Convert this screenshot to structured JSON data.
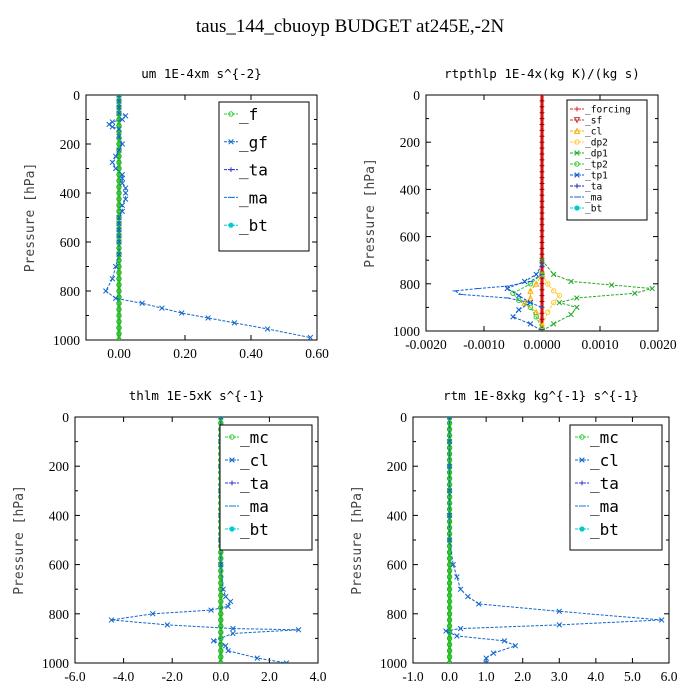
{
  "title": "taus_144_cbuoyp  BUDGET at245E,-2N",
  "chart_data": [
    {
      "type": "line",
      "title": "um  1E-4xm s^{-2}",
      "ylabel": "Pressure [hPa]",
      "xlim": [
        -0.1,
        0.6
      ],
      "ylim": [
        1000,
        0
      ],
      "xticks": [
        "0.00",
        "0.20",
        "0.40",
        "0.60"
      ],
      "xtick_values": [
        0,
        0.2,
        0.4,
        0.6
      ],
      "yticks": [
        0,
        200,
        400,
        600,
        800,
        1000
      ],
      "legend_placement": "top-right",
      "series": [
        {
          "name": "_f",
          "color": "#33cc33",
          "marker": "o",
          "x": [
            0,
            0,
            0,
            0,
            0,
            0,
            0,
            0,
            0,
            0,
            0,
            0,
            0,
            0,
            0,
            0,
            0,
            0,
            0,
            0,
            0,
            0,
            0,
            0,
            0,
            0,
            0,
            0,
            0,
            0,
            0,
            0,
            0,
            0,
            0,
            0,
            0,
            0,
            0,
            0,
            0
          ],
          "y": [
            0,
            25,
            50,
            75,
            100,
            125,
            150,
            175,
            200,
            225,
            250,
            275,
            300,
            325,
            350,
            375,
            400,
            425,
            450,
            475,
            500,
            525,
            550,
            575,
            600,
            625,
            650,
            675,
            700,
            725,
            750,
            775,
            800,
            825,
            850,
            875,
            900,
            925,
            950,
            975,
            1000
          ]
        },
        {
          "name": "_gf",
          "color": "#1166cc",
          "marker": "x",
          "x": [
            0,
            0,
            0,
            0,
            0.02,
            0.01,
            -0.02,
            -0.03,
            -0.02,
            0,
            0,
            0.01,
            0,
            -0.01,
            -0.02,
            -0.01,
            0.01,
            0.01,
            0.01,
            0.02,
            0.02,
            0.02,
            0.01,
            0.01,
            0,
            0,
            0,
            0,
            0,
            0,
            -0.01,
            -0.02,
            -0.04,
            -0.01,
            0.07,
            0.13,
            0.19,
            0.27,
            0.35,
            0.45,
            0.58
          ],
          "y": [
            0,
            25,
            50,
            75,
            85,
            100,
            110,
            120,
            130,
            140,
            170,
            200,
            225,
            250,
            275,
            300,
            325,
            340,
            360,
            380,
            400,
            425,
            450,
            475,
            500,
            525,
            550,
            575,
            600,
            650,
            700,
            750,
            800,
            830,
            850,
            870,
            890,
            910,
            930,
            955,
            990
          ]
        },
        {
          "name": "_ta",
          "color": "#3333cc",
          "marker": "+",
          "x": [],
          "y": []
        },
        {
          "name": "_ma",
          "color": "#1177dd",
          "marker": "-",
          "x": [],
          "y": []
        },
        {
          "name": "_bt",
          "color": "#00cccc",
          "marker": "*",
          "x": [],
          "y": []
        }
      ]
    },
    {
      "type": "line",
      "title": "rtpthlp  1E-4x(kg K)/(kg s)",
      "ylabel": "Pressure [hPa]",
      "xlim": [
        -0.002,
        0.002
      ],
      "ylim": [
        1000,
        0
      ],
      "xticks": [
        "-0.0020",
        "-0.0010",
        "0.0000",
        "0.0010",
        "0.0020"
      ],
      "xtick_values": [
        -0.002,
        -0.001,
        0,
        0.001,
        0.002
      ],
      "yticks": [
        0,
        200,
        400,
        600,
        800,
        1000
      ],
      "legend_placement": "top-right",
      "series": [
        {
          "name": "_forcing",
          "color": "#dd2222",
          "marker": "+",
          "x": [
            0,
            0,
            0,
            0,
            0,
            0,
            0,
            0,
            0,
            0,
            0,
            0,
            0,
            0,
            0,
            0,
            0,
            0,
            0,
            0,
            0,
            0,
            0,
            0,
            0,
            0,
            0,
            0,
            0,
            0,
            0,
            0,
            0,
            0,
            0,
            0,
            0,
            0,
            0,
            0,
            0
          ],
          "y": [
            0,
            25,
            50,
            75,
            100,
            125,
            150,
            175,
            200,
            225,
            250,
            275,
            300,
            325,
            350,
            375,
            400,
            425,
            450,
            475,
            500,
            525,
            550,
            575,
            600,
            625,
            650,
            675,
            700,
            725,
            750,
            775,
            800,
            825,
            850,
            875,
            900,
            925,
            950,
            975,
            1000
          ]
        },
        {
          "name": "_sf",
          "color": "#cc3333",
          "marker": "v",
          "x": [],
          "y": []
        },
        {
          "name": "_cl",
          "color": "#ffaa00",
          "marker": "^",
          "x": [
            0,
            -0.0001,
            -0.0002,
            -0.0002,
            -0.0003,
            -0.0001,
            0
          ],
          "y": [
            760,
            800,
            830,
            860,
            880,
            920,
            980
          ]
        },
        {
          "name": "_dp2",
          "color": "#ffcc33",
          "marker": "o",
          "x": [
            0,
            0.0001,
            0.0002,
            0.0003,
            0.0002,
            0.0001,
            0
          ],
          "y": [
            760,
            800,
            830,
            850,
            880,
            920,
            980
          ]
        },
        {
          "name": "_dp1",
          "color": "#22aa22",
          "marker": "x",
          "x": [
            0,
            0.0002,
            0.0005,
            0.0012,
            0.0019,
            0.0016,
            0.0006,
            0.0003,
            0.0006,
            0.0005,
            0.0002,
            0
          ],
          "y": [
            700,
            760,
            790,
            805,
            820,
            840,
            860,
            880,
            900,
            930,
            970,
            1000
          ]
        },
        {
          "name": "_tp2",
          "color": "#33cc33",
          "marker": "o",
          "x": [
            0,
            -0.0002,
            -0.0005,
            -0.0004,
            -0.0002,
            -0.0001,
            0
          ],
          "y": [
            760,
            800,
            840,
            870,
            900,
            940,
            990
          ]
        },
        {
          "name": "_tp1",
          "color": "#1155cc",
          "marker": "x",
          "x": [
            0,
            -0.0001,
            -0.0003,
            -0.0006,
            -0.0004,
            -0.0002,
            -0.0004,
            -0.0005,
            -0.0002,
            0
          ],
          "y": [
            720,
            760,
            790,
            820,
            850,
            880,
            910,
            940,
            970,
            1000
          ]
        },
        {
          "name": "_ta",
          "color": "#2222aa",
          "marker": "+",
          "x": [],
          "y": []
        },
        {
          "name": "_ma",
          "color": "#1166dd",
          "marker": "-",
          "x": [
            0,
            -0.0002,
            -0.0006,
            -0.0011,
            -0.0015,
            -0.0014,
            -0.0006,
            -0.0002,
            0
          ],
          "y": [
            760,
            790,
            810,
            820,
            830,
            845,
            860,
            880,
            900
          ]
        },
        {
          "name": "_bt",
          "color": "#00cccc",
          "marker": "*",
          "x": [],
          "y": []
        }
      ]
    },
    {
      "type": "line",
      "title": "thlm  1E-5xK s^{-1}",
      "ylabel": "Pressure [hPa]",
      "xlim": [
        -6.0,
        4.0
      ],
      "ylim": [
        1000,
        0
      ],
      "xticks": [
        "-6.0",
        "-4.0",
        "-2.0",
        "0.0",
        "2.0",
        "4.0"
      ],
      "xtick_values": [
        -6,
        -4,
        -2,
        0,
        2,
        4
      ],
      "yticks": [
        0,
        200,
        400,
        600,
        800,
        1000
      ],
      "legend_placement": "top-right",
      "series": [
        {
          "name": "_mc",
          "color": "#33cc33",
          "marker": "o",
          "x": [
            0,
            0,
            0,
            0,
            0,
            0,
            0,
            0,
            0,
            0,
            0,
            0,
            0,
            0,
            0,
            0,
            0,
            0,
            0,
            0,
            0,
            0,
            0,
            0,
            0,
            0,
            0,
            0,
            0,
            0,
            0,
            0,
            0,
            0,
            0,
            0,
            0,
            0,
            0,
            0,
            0
          ],
          "y": [
            0,
            25,
            50,
            75,
            100,
            125,
            150,
            175,
            200,
            225,
            250,
            275,
            300,
            325,
            350,
            375,
            400,
            425,
            450,
            475,
            500,
            525,
            550,
            575,
            600,
            625,
            650,
            675,
            700,
            725,
            750,
            775,
            800,
            825,
            850,
            875,
            900,
            925,
            950,
            975,
            1000
          ]
        },
        {
          "name": "_cl",
          "color": "#1166cc",
          "marker": "x",
          "x": [
            0,
            0,
            0,
            0,
            0,
            0,
            0,
            0.1,
            0.2,
            0.4,
            0.3,
            -0.4,
            -2.8,
            -4.5,
            -2.2,
            0.5,
            3.2,
            0.5,
            -0.3,
            0.2,
            0.3,
            1.5,
            2.7
          ],
          "y": [
            0,
            100,
            200,
            300,
            400,
            500,
            600,
            700,
            730,
            750,
            770,
            785,
            800,
            825,
            845,
            860,
            865,
            880,
            910,
            930,
            950,
            980,
            1000
          ]
        },
        {
          "name": "_ta",
          "color": "#3333cc",
          "marker": "+",
          "x": [],
          "y": []
        },
        {
          "name": "_ma",
          "color": "#1177dd",
          "marker": "-",
          "x": [],
          "y": []
        },
        {
          "name": "_bt",
          "color": "#00cccc",
          "marker": "*",
          "x": [],
          "y": []
        }
      ]
    },
    {
      "type": "line",
      "title": "rtm  1E-8xkg kg^{-1} s^{-1}",
      "ylabel": "Pressure [hPa]",
      "xlim": [
        -1.0,
        6.0
      ],
      "ylim": [
        1000,
        0
      ],
      "xticks": [
        "-1.0",
        "0.0",
        "1.0",
        "2.0",
        "3.0",
        "4.0",
        "5.0",
        "6.0"
      ],
      "xtick_values": [
        -1,
        0,
        1,
        2,
        3,
        4,
        5,
        6
      ],
      "yticks": [
        0,
        200,
        400,
        600,
        800,
        1000
      ],
      "legend_placement": "top-right",
      "series": [
        {
          "name": "_mc",
          "color": "#33cc33",
          "marker": "o",
          "x": [
            0,
            0,
            0,
            0,
            0,
            0,
            0,
            0,
            0,
            0,
            0,
            0,
            0,
            0,
            0,
            0,
            0,
            0,
            0,
            0,
            0,
            0,
            0,
            0,
            0,
            0,
            0,
            0,
            0,
            0,
            0,
            0,
            0,
            0,
            0,
            0,
            0,
            0,
            0,
            0,
            0
          ],
          "y": [
            0,
            25,
            50,
            75,
            100,
            125,
            150,
            175,
            200,
            225,
            250,
            275,
            300,
            325,
            350,
            375,
            400,
            425,
            450,
            475,
            500,
            525,
            550,
            575,
            600,
            625,
            650,
            675,
            700,
            725,
            750,
            775,
            800,
            825,
            850,
            875,
            900,
            925,
            950,
            975,
            1000
          ]
        },
        {
          "name": "_cl",
          "color": "#1166cc",
          "marker": "x",
          "x": [
            0,
            0,
            0,
            0,
            0,
            0,
            0.1,
            0.2,
            0.3,
            0.5,
            0.8,
            3.0,
            5.8,
            3.0,
            0.3,
            -0.1,
            0.2,
            1.5,
            1.8,
            1.2,
            1.0,
            1.0
          ],
          "y": [
            0,
            100,
            200,
            300,
            400,
            500,
            600,
            650,
            700,
            730,
            760,
            790,
            825,
            845,
            860,
            870,
            890,
            910,
            930,
            960,
            980,
            1000
          ]
        },
        {
          "name": "_ta",
          "color": "#3333cc",
          "marker": "+",
          "x": [],
          "y": []
        },
        {
          "name": "_ma",
          "color": "#1177dd",
          "marker": "-",
          "x": [],
          "y": []
        },
        {
          "name": "_bt",
          "color": "#00cccc",
          "marker": "*",
          "x": [],
          "y": []
        }
      ]
    }
  ]
}
